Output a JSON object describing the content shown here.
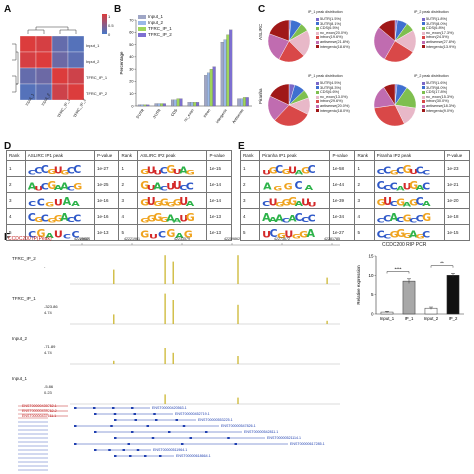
{
  "panels": {
    "a": "A",
    "b": "B",
    "c": "C",
    "d": "D",
    "e": "E",
    "f": "F"
  },
  "colors": {
    "input1": "#9fa6c6",
    "input2": "#9ab8e8",
    "ip1": "#9fd65b",
    "ip2": "#7d6fd1",
    "A": "#2db34a",
    "C": "#2e58c8",
    "G": "#f0a420",
    "U": "#d42a2a"
  },
  "panelA": {
    "labels": [
      "Input_1",
      "Input_2",
      "TFRC_IP_1",
      "TFRC_IP_2"
    ],
    "matrix": [
      [
        1.0,
        0.95,
        0.2,
        0.1
      ],
      [
        0.95,
        1.0,
        0.25,
        0.15
      ],
      [
        0.2,
        0.25,
        1.0,
        0.9
      ],
      [
        0.1,
        0.15,
        0.9,
        1.0
      ]
    ],
    "colorbar_ticks": [
      "1",
      "0.5",
      "0"
    ]
  },
  "chart_data": [
    {
      "type": "bar",
      "title": "",
      "ylabel": "Percentage",
      "categories": [
        "5'UTR",
        "3'UTR",
        "CDS",
        "nc_exon",
        "intron",
        "intergenic",
        "Antisense"
      ],
      "series": [
        {
          "name": "Input_1",
          "values": [
            1,
            2,
            5,
            3,
            25,
            52,
            6
          ]
        },
        {
          "name": "Input_2",
          "values": [
            1,
            2,
            5,
            3,
            27,
            54,
            6
          ]
        },
        {
          "name": "TFRC_IP_1",
          "values": [
            1,
            2,
            6,
            3,
            30,
            58,
            7
          ]
        },
        {
          "name": "TFRC_IP_2",
          "values": [
            1,
            2,
            6,
            3,
            32,
            62,
            7
          ]
        }
      ],
      "ylim": [
        0,
        70
      ],
      "yticks": [
        0,
        10,
        20,
        30,
        40,
        50,
        60,
        70
      ],
      "legend": "top-left"
    },
    {
      "type": "bar",
      "title": "CCDC200 RIP PCR",
      "ylabel": "Relative expression",
      "categories": [
        "Input_1",
        "IP_1",
        "Input_2",
        "IP_2"
      ],
      "values": [
        0.5,
        8.5,
        1.5,
        10
      ],
      "errors": [
        0.2,
        0.6,
        0.3,
        0.5
      ],
      "ylim": [
        0,
        15
      ],
      "yticks": [
        0,
        5,
        10,
        15
      ],
      "significance": [
        "****",
        "**"
      ]
    }
  ],
  "pies": [
    {
      "title": "IP_1 peak distribution",
      "side": "ASLIRC",
      "values": [
        1.5,
        8.1,
        6.5,
        20.0,
        19.6,
        21.8,
        18.6
      ],
      "legend": [
        "5UTR(1.5%)",
        "3UTR(8.1%)",
        "CDS(6.5%)",
        "nc_exon(20.0%)",
        "intron(19.6%)",
        "antisense(21.8%)",
        "intergenic(18.6%)"
      ]
    },
    {
      "title": "IP_2 peak distribution",
      "side": "",
      "values": [
        1.8,
        8.0,
        6.8,
        17.3,
        24.5,
        27.8,
        13.9
      ],
      "legend": [
        "5UTR(1.8%)",
        "3UTR(8.0%)",
        "CDS(6.8%)",
        "nc_exon(17.3%)",
        "intron(24.5%)",
        "antisense(27.8%)",
        "intergenic(13.9%)"
      ]
    },
    {
      "title": "IP_1 peak distribution",
      "side": "Piranha",
      "values": [
        4.5,
        8.3,
        6.6,
        13.0,
        29.6,
        20.0,
        18.0
      ],
      "legend": [
        "5UTR(4.5%)",
        "3UTR(8.3%)",
        "CDS(6.6%)",
        "nc_exon(13.0%)",
        "intron(29.6%)",
        "antisense(20.0%)",
        "intergenic(18.0%)"
      ]
    },
    {
      "title": "IP_2 peak distribution",
      "side": "",
      "values": [
        1.6,
        8.0,
        17.8,
        15.3,
        30.0,
        18.3,
        9.0
      ],
      "legend": [
        "5UTR(1.6%)",
        "3UTR(8.0%)",
        "CDS(17.8%)",
        "nc_exon(15.3%)",
        "intron(30.0%)",
        "antisense(18.3%)",
        "intergenic(9.0%)"
      ]
    }
  ],
  "pie_colors": [
    "#7b68c8",
    "#3f6fd0",
    "#7fbf4f",
    "#e8b8c8",
    "#d94848",
    "#c06cb0",
    "#a01818"
  ],
  "tableD": {
    "headers": [
      "Rank",
      "ASLIRC IP1 peak",
      "P-value",
      "Rank",
      "ASLIRC IP2 peak",
      "P-value"
    ],
    "rows": [
      {
        "rank1": "1",
        "m1": "CCCGUGCC",
        "p1": "1e-27",
        "rank2": "1",
        "m2": "GUUCGUAG",
        "p2": "1e-15"
      },
      {
        "rank1": "2",
        "m1": "AUCGAACG",
        "p1": "1e-25",
        "rank2": "2",
        "m2": "GUACUUCC",
        "p2": "1e-14"
      },
      {
        "rank1": "3",
        "m1": "CCGUAA",
        "p1": "1e-16",
        "rank2": "3",
        "m2": "GUGGGGUA",
        "p2": "1e-14"
      },
      {
        "rank1": "4",
        "m1": "CGCGGACC",
        "p1": "1e-16",
        "rank2": "4",
        "m2": "GGGGAAUG",
        "p2": "1e-13"
      },
      {
        "rank1": "5",
        "m1": "CGAUCC",
        "p1": "1e-13",
        "rank2": "5",
        "m2": "GUCGAG",
        "p2": "1e-13"
      }
    ]
  },
  "tableE": {
    "headers": [
      "Rank",
      "Piranha IP1 peak",
      "P-value",
      "Rank",
      "Piranha IP2 peak",
      "P-value"
    ],
    "rows": [
      {
        "rank1": "1",
        "m1": "UGCGUAGC",
        "p1": "1e-58",
        "rank2": "1",
        "m2": "CCGCGUCC",
        "p2": "1e-23"
      },
      {
        "rank1": "2",
        "m1": "AGGCA",
        "p1": "1e-44",
        "rank2": "2",
        "m2": "CCCAUGAC",
        "p2": "1e-21"
      },
      {
        "rank1": "3",
        "m1": "CUGGGAUU",
        "p1": "1e-39",
        "rank2": "3",
        "m2": "GUCGAGCA",
        "p2": "1e-20"
      },
      {
        "rank1": "4",
        "m1": "AAACACCC",
        "p1": "1e-34",
        "rank2": "4",
        "m2": "CCACGCCG",
        "p2": "1e-18"
      },
      {
        "rank1": "5",
        "m1": "UCGUGGA",
        "p1": "1e-27",
        "rank2": "5",
        "m2": "CCGGGAGC",
        "p2": "1e-15"
      }
    ]
  },
  "panelF": {
    "title": "CCDC200 IP(Peak)",
    "scale_label": "chr17",
    "positions": [
      "42220584",
      "42221961",
      "42233579",
      "42259862",
      "42273672",
      "42281785"
    ],
    "tracks": [
      {
        "label": "TFRC_IP_2",
        "top": "-",
        "bottom": "",
        "peaks": [
          {
            "x": 0.16,
            "h": 0.45
          },
          {
            "x": 0.35,
            "h": 0.9
          },
          {
            "x": 0.38,
            "h": 0.7
          },
          {
            "x": 0.62,
            "h": 0.9
          },
          {
            "x": 0.95,
            "h": 0.2
          }
        ]
      },
      {
        "label": "TFRC_IP_1",
        "top": "-323.86",
        "bottom": "4.74",
        "peaks": [
          {
            "x": 0.16,
            "h": 0.3
          },
          {
            "x": 0.35,
            "h": 0.95
          },
          {
            "x": 0.38,
            "h": 0.75
          },
          {
            "x": 0.62,
            "h": 0.6
          },
          {
            "x": 0.95,
            "h": 0.1
          }
        ]
      },
      {
        "label": "Input_2",
        "top": "-71.89",
        "bottom": "4.74",
        "peaks": [
          {
            "x": 0.16,
            "h": 0.1
          },
          {
            "x": 0.35,
            "h": 0.5
          },
          {
            "x": 0.38,
            "h": 0.35
          },
          {
            "x": 0.62,
            "h": 0.25
          }
        ]
      },
      {
        "label": "Input_1",
        "top": "-5.86",
        "bottom": "0.23",
        "peaks": [
          {
            "x": 0.35,
            "h": 0.3
          },
          {
            "x": 0.62,
            "h": 0.2
          }
        ]
      }
    ],
    "transcripts": [
      "ENST00000420563.1",
      "ENST00000452719.1",
      "ENST00000553225.1",
      "ENST00000547826.1",
      "ENST00000542811.1",
      "ENST00000521114.1",
      "ENST00000617285.1",
      "ENST00000511964.1",
      "ENST00000618664.1"
    ],
    "red_transcripts": [
      "ENST00000439252.1",
      "ENST00000439252.2",
      "ENST00000437611.1"
    ]
  }
}
